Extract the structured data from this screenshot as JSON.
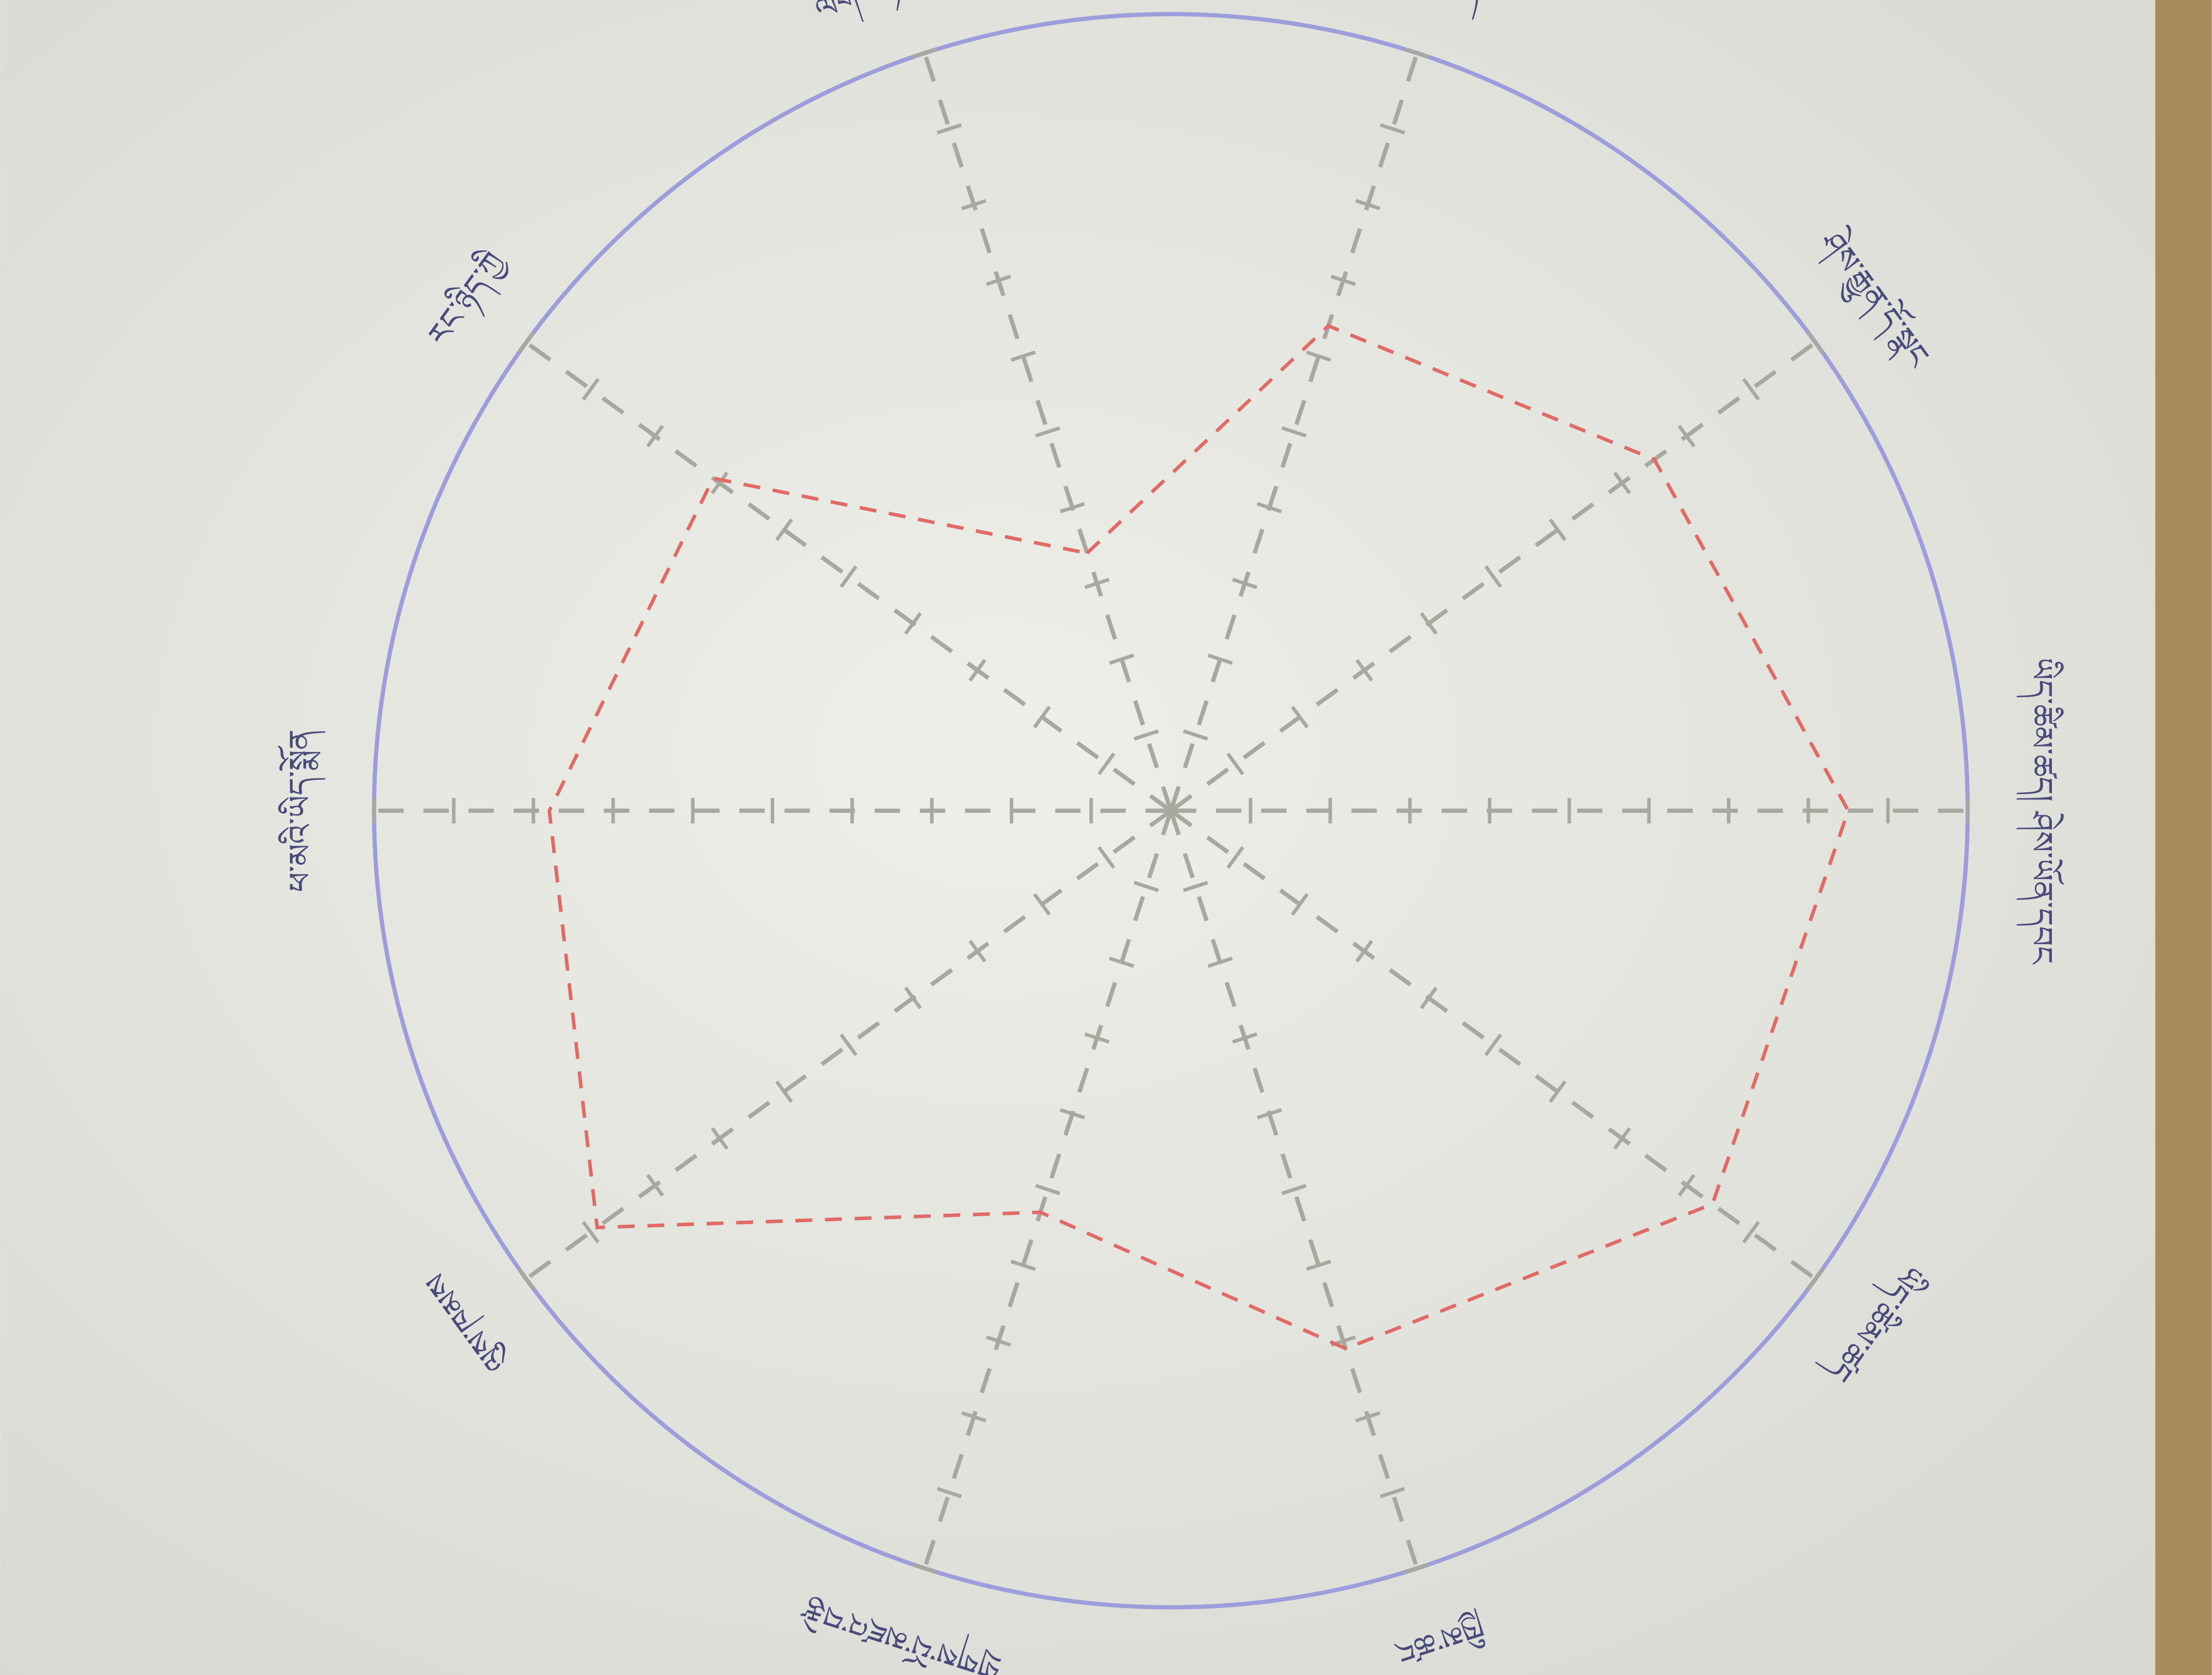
{
  "chart_data": {
    "type": "radar",
    "categories": [
      "ལེགས་ཉེས་ཤེས་པ",
      "སློབ་ཚན",
      "ཤེས་རྒྱུན་དོ་སྣང",
      "ཡིད་ཚིམ་ཚད། ཤེས་ཡོན་དབང",
      "ཡིད་ཚིམ་ཚད",
      "ཁྱིམ་ཚང",
      "གྲོགས་པོ་མཛའ་བརྩེ",
      "ལུས་ཁམས",
      "ཕ་མའི་ཡིད་སྨོན",
      "རང་ཉིད་ཀྱི"
    ],
    "values": [
      3.4,
      6.4,
      7.5,
      8.5,
      8.4,
      7.1,
      5.3,
      8.9,
      7.8,
      7.1
    ],
    "color": "#e06a66",
    "rlim": [
      0,
      10
    ],
    "rticks": [
      1,
      2,
      3,
      4,
      5,
      6,
      7,
      8,
      9,
      10
    ],
    "axis_color": "#a8a8a0",
    "circle_color": "#9d9ddc"
  }
}
